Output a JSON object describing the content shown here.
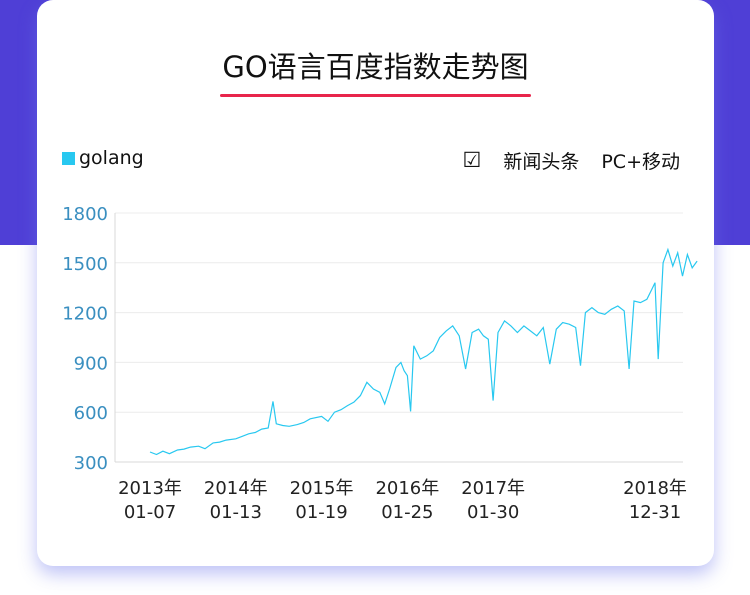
{
  "colors": {
    "band": "#4f3fd6",
    "accent": "#e8254b",
    "series": "#28c8f0",
    "ytick": "#3a8fc0"
  },
  "header": {
    "title": "GO语言百度指数走势图"
  },
  "legend": {
    "label": "golang"
  },
  "options": {
    "check_symbol": "☑",
    "source_news": "新闻头条",
    "source_device": "PC+移动"
  },
  "chart_data": {
    "type": "line",
    "title": "GO语言百度指数走势图",
    "xlabel": "",
    "ylabel": "",
    "ylim": [
      300,
      1800
    ],
    "yticks": [
      300,
      600,
      900,
      1200,
      1500,
      1800
    ],
    "xticks": [
      {
        "date": "2013-01-07",
        "line1": "2013年",
        "line2": "01-07"
      },
      {
        "date": "2014-01-13",
        "line1": "2014年",
        "line2": "01-13"
      },
      {
        "date": "2015-01-19",
        "line1": "2015年",
        "line2": "01-19"
      },
      {
        "date": "2016-01-25",
        "line1": "2016年",
        "line2": "01-25"
      },
      {
        "date": "2017-01-30",
        "line1": "2017年",
        "line2": "01-30"
      },
      {
        "date": "2018-12-31",
        "line1": "2018年",
        "line2": "12-31"
      }
    ],
    "grid": true,
    "legend_position": "top-left",
    "series": [
      {
        "name": "golang",
        "points": [
          [
            "2013-01-07",
            360
          ],
          [
            "2013-02-04",
            345
          ],
          [
            "2013-03-04",
            365
          ],
          [
            "2013-04-01",
            350
          ],
          [
            "2013-05-06",
            372
          ],
          [
            "2013-06-03",
            378
          ],
          [
            "2013-07-01",
            390
          ],
          [
            "2013-08-05",
            395
          ],
          [
            "2013-09-02",
            380
          ],
          [
            "2013-10-07",
            415
          ],
          [
            "2013-11-04",
            420
          ],
          [
            "2013-12-02",
            432
          ],
          [
            "2014-01-13",
            440
          ],
          [
            "2014-02-10",
            455
          ],
          [
            "2014-03-10",
            470
          ],
          [
            "2014-04-07",
            478
          ],
          [
            "2014-05-05",
            498
          ],
          [
            "2014-06-02",
            505
          ],
          [
            "2014-06-23",
            665
          ],
          [
            "2014-07-07",
            530
          ],
          [
            "2014-08-04",
            520
          ],
          [
            "2014-09-01",
            515
          ],
          [
            "2014-10-06",
            525
          ],
          [
            "2014-11-03",
            538
          ],
          [
            "2014-12-01",
            560
          ],
          [
            "2015-01-19",
            575
          ],
          [
            "2015-02-16",
            545
          ],
          [
            "2015-03-16",
            600
          ],
          [
            "2015-04-13",
            615
          ],
          [
            "2015-05-11",
            640
          ],
          [
            "2015-06-08",
            660
          ],
          [
            "2015-07-06",
            700
          ],
          [
            "2015-08-03",
            780
          ],
          [
            "2015-08-31",
            740
          ],
          [
            "2015-09-28",
            720
          ],
          [
            "2015-10-19",
            650
          ],
          [
            "2015-11-09",
            740
          ],
          [
            "2015-12-07",
            870
          ],
          [
            "2015-12-28",
            900
          ],
          [
            "2016-01-11",
            850
          ],
          [
            "2016-01-25",
            820
          ],
          [
            "2016-02-08",
            605
          ],
          [
            "2016-02-22",
            1000
          ],
          [
            "2016-03-21",
            920
          ],
          [
            "2016-04-18",
            940
          ],
          [
            "2016-05-16",
            970
          ],
          [
            "2016-06-13",
            1050
          ],
          [
            "2016-07-11",
            1090
          ],
          [
            "2016-08-08",
            1120
          ],
          [
            "2016-09-05",
            1060
          ],
          [
            "2016-10-03",
            860
          ],
          [
            "2016-10-31",
            1080
          ],
          [
            "2016-11-28",
            1100
          ],
          [
            "2016-12-19",
            1060
          ],
          [
            "2017-01-09",
            1040
          ],
          [
            "2017-01-30",
            670
          ],
          [
            "2017-02-20",
            1080
          ],
          [
            "2017-03-20",
            1150
          ],
          [
            "2017-04-17",
            1120
          ],
          [
            "2017-05-15",
            1080
          ],
          [
            "2017-06-12",
            1120
          ],
          [
            "2017-07-10",
            1090
          ],
          [
            "2017-08-07",
            1060
          ],
          [
            "2017-09-04",
            1110
          ],
          [
            "2017-10-02",
            890
          ],
          [
            "2017-10-30",
            1100
          ],
          [
            "2017-11-27",
            1140
          ],
          [
            "2017-12-25",
            1130
          ],
          [
            "2018-01-22",
            1110
          ],
          [
            "2018-02-12",
            880
          ],
          [
            "2018-03-05",
            1200
          ],
          [
            "2018-04-02",
            1230
          ],
          [
            "2018-04-30",
            1200
          ],
          [
            "2018-05-28",
            1190
          ],
          [
            "2018-06-25",
            1220
          ],
          [
            "2018-07-23",
            1240
          ],
          [
            "2018-08-20",
            1210
          ],
          [
            "2018-09-10",
            860
          ],
          [
            "2018-10-01",
            1270
          ],
          [
            "2018-10-29",
            1260
          ],
          [
            "2018-11-26",
            1280
          ],
          [
            "2018-12-17",
            1340
          ],
          [
            "2018-12-31",
            1380
          ],
          [
            "2019-01-14",
            920
          ],
          [
            "2019-02-04",
            1500
          ],
          [
            "2019-02-25",
            1580
          ],
          [
            "2019-03-18",
            1480
          ],
          [
            "2019-04-08",
            1560
          ],
          [
            "2019-04-29",
            1420
          ],
          [
            "2019-05-20",
            1550
          ],
          [
            "2019-06-10",
            1470
          ],
          [
            "2019-07-01",
            1510
          ]
        ]
      }
    ]
  }
}
